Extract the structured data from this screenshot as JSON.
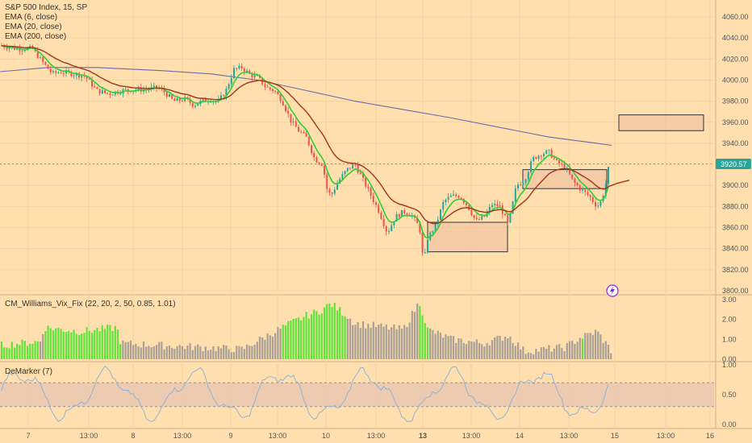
{
  "chart_data": [
    {
      "type": "candlestick",
      "title": "S&P 500 Index, 15, SP",
      "indicators": [
        "EMA (6, close)",
        "EMA (20, close)",
        "EMA (200, close)"
      ],
      "ylim": [
        3800,
        4070
      ],
      "y_ticks": [
        "4060.00",
        "4040.00",
        "4020.00",
        "4000.00",
        "3980.00",
        "3960.00",
        "3940.00",
        "3920.00",
        "3900.00",
        "3880.00",
        "3860.00",
        "3840.00",
        "3820.00",
        "3800.00"
      ],
      "last_price": "3920.57",
      "colors": {
        "up": "#26a69a",
        "down": "#ef5350",
        "ema6": "#32cd32",
        "ema20": "#a0341a",
        "ema200": "#6a6aa8",
        "price_tag": "#26a69a"
      },
      "zones": [
        {
          "label": "",
          "y_range": [
            3837,
            3865
          ]
        },
        {
          "label": "",
          "y_range": [
            3897,
            3915
          ]
        },
        {
          "label": "",
          "y_range": [
            3952,
            3967
          ]
        }
      ]
    },
    {
      "type": "bar",
      "title": "CM_Williams_Vix_Fix (22, 20, 2, 50, 0.85, 1.01)",
      "ylim": [
        0,
        3.2
      ],
      "y_ticks": [
        "3.00",
        "2.00",
        "1.00",
        "0.00"
      ],
      "colors": {
        "high": "#5fe53a",
        "normal": "#a8a096"
      }
    },
    {
      "type": "line",
      "title": "DeMarker (7)",
      "ylim": [
        0,
        1
      ],
      "y_ticks": [
        "1.00",
        "0.50",
        "0.00"
      ],
      "band": [
        0.3,
        0.7
      ],
      "colors": {
        "line": "#8fb4d9",
        "band": "#e8c6b2"
      }
    }
  ],
  "x_axis": {
    "ticks": [
      "7",
      "13:00",
      "8",
      "13:00",
      "9",
      "13:00",
      "10",
      "13:00",
      "13",
      "13:00",
      "14",
      "13:00",
      "15",
      "13:00",
      "16"
    ],
    "bold_tick": "13"
  },
  "alert_icon": "lightning-icon"
}
